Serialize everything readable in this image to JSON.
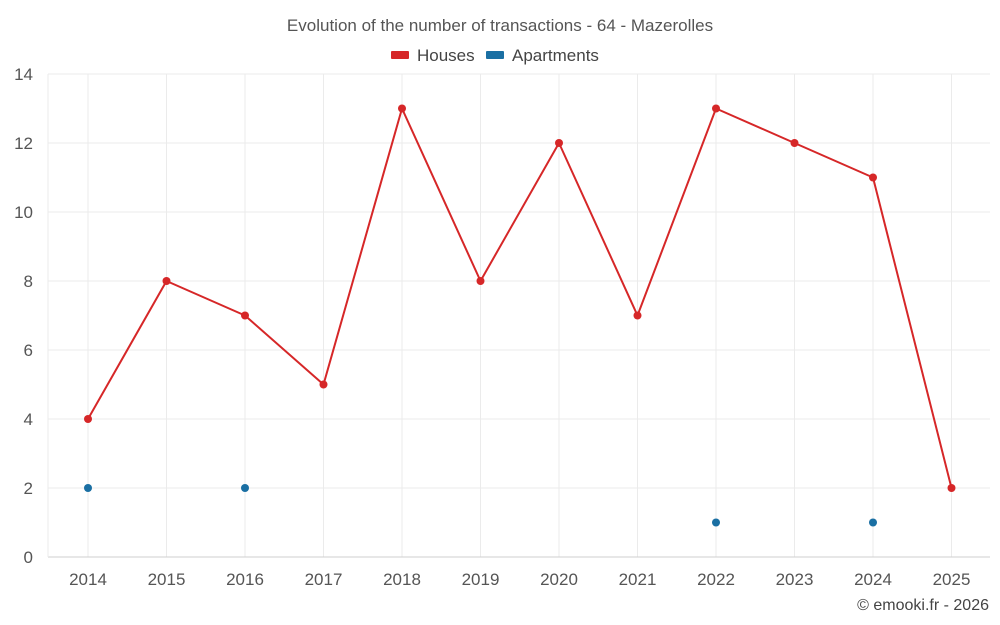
{
  "chart_data": {
    "type": "line",
    "title": "Evolution of the number of transactions - 64 - Mazerolles",
    "x": [
      "2014",
      "2015",
      "2016",
      "2017",
      "2018",
      "2019",
      "2020",
      "2021",
      "2022",
      "2023",
      "2024",
      "2025"
    ],
    "ylim": [
      0,
      14
    ],
    "yticks": [
      0,
      2,
      4,
      6,
      8,
      10,
      12,
      14
    ],
    "grid": true,
    "legend_position": "top-center",
    "series": [
      {
        "name": "Houses",
        "color": "#d62728",
        "style": "line-with-markers",
        "values": [
          4,
          8,
          7,
          5,
          13,
          8,
          12,
          7,
          13,
          12,
          11,
          2
        ]
      },
      {
        "name": "Apartments",
        "color": "#1a6fa3",
        "style": "markers",
        "values": [
          2,
          null,
          2,
          null,
          null,
          null,
          null,
          null,
          1,
          null,
          1,
          null
        ]
      }
    ]
  },
  "credit": "© emooki.fr - 2026"
}
